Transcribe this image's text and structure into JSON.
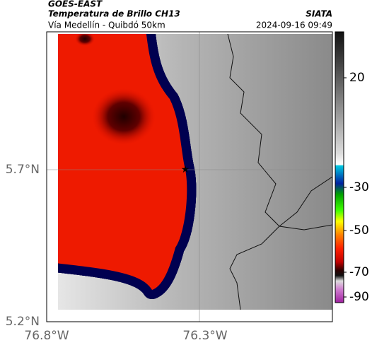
{
  "header": {
    "source": "GOES-EAST",
    "title": "Temperatura de Brillo CH13",
    "brand": "SIATA",
    "subtitle": "Vía Medellín - Quibdó 50km",
    "timestamp": "2024-09-16 09:49"
  },
  "map": {
    "lat_labels": [
      "5.7°N",
      "5.2°N"
    ],
    "lon_labels": [
      "76.8°W",
      "76.3°W"
    ]
  },
  "colorbar": {
    "tick_labels": [
      "20",
      "-30",
      "-50",
      "-70",
      "-90"
    ]
  }
}
